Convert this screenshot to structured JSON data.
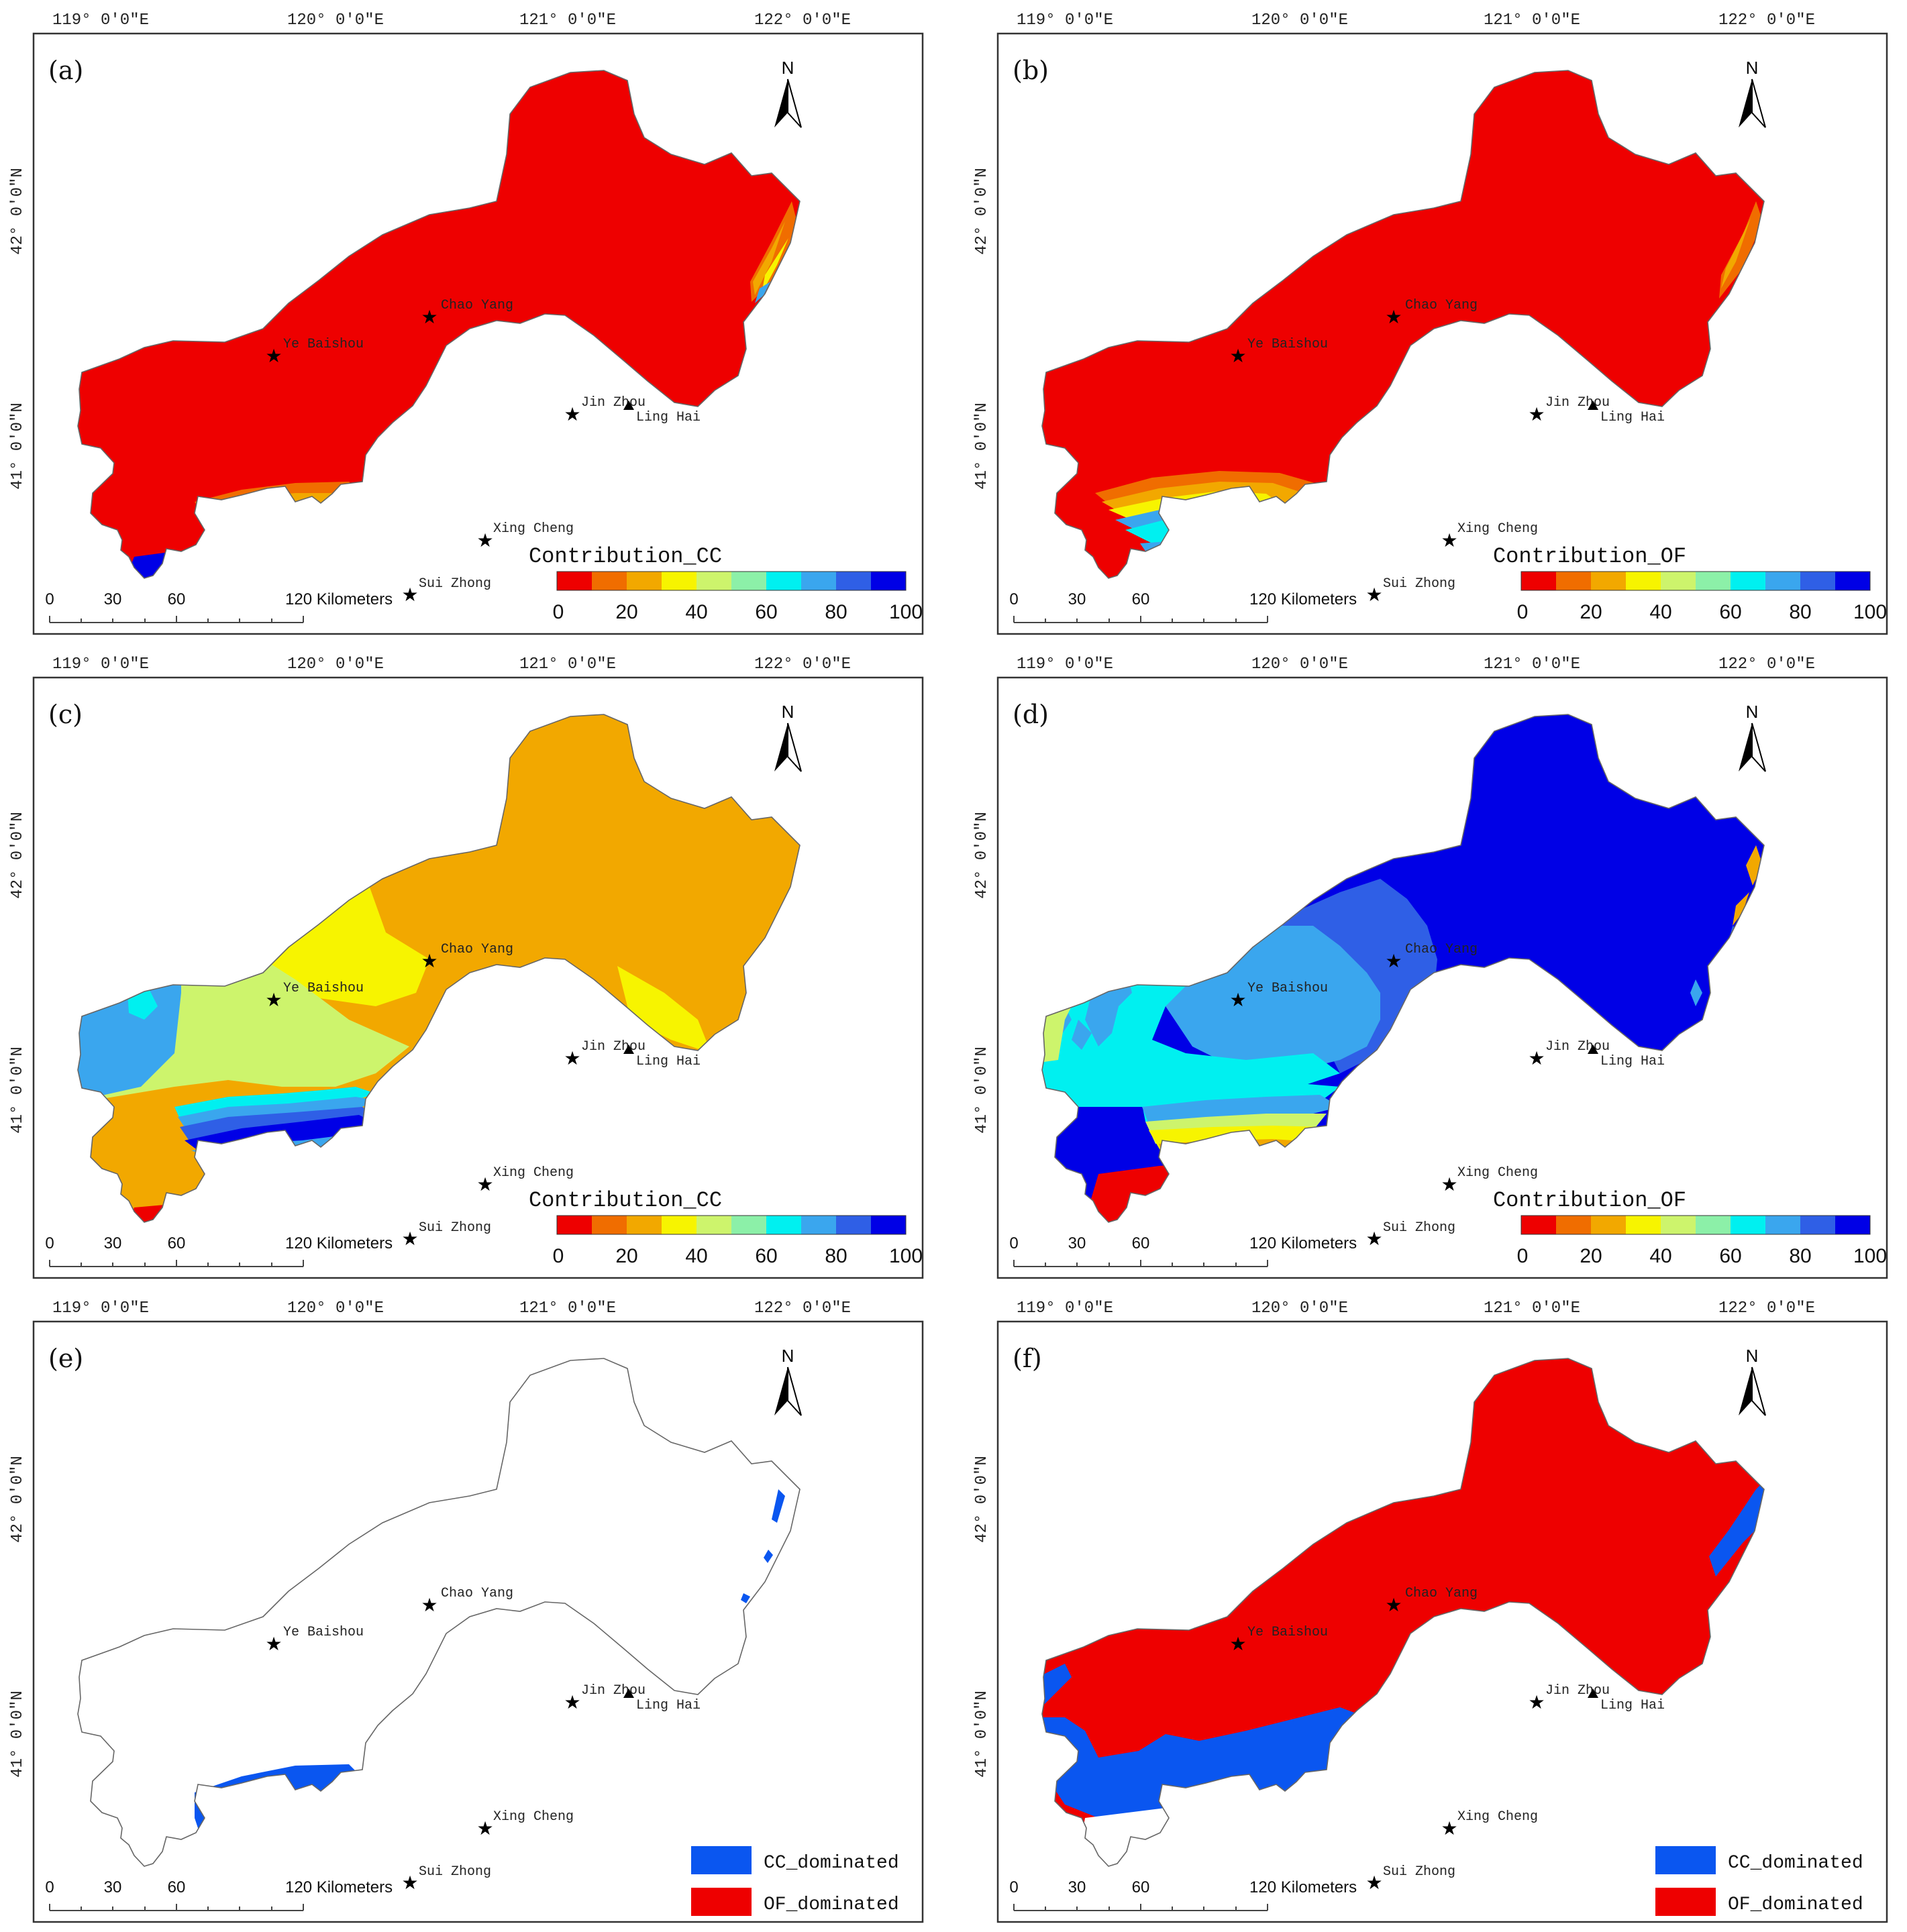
{
  "figure": {
    "lon_labels": [
      "119° 0′0″E",
      "120° 0′0″E",
      "121° 0′0″E",
      "122° 0′0″E"
    ],
    "lat_labels": [
      "42° 0′0″N",
      "41° 0′0″N"
    ],
    "north_label": "N",
    "scale": {
      "ticks": [
        "0",
        "30",
        "60"
      ],
      "end_label": "120 Kilometers"
    },
    "places": {
      "chao_yang": "Chao Yang",
      "ye_baishou": "Ye Baishou",
      "jin_zhou": "Jin Zhou",
      "ling_hai": "Ling Hai",
      "xing_cheng": "Xing Cheng",
      "sui_zhong": "Sui Zhong"
    },
    "colorbar": {
      "ticks": [
        "0",
        "20",
        "40",
        "60",
        "80",
        "100"
      ],
      "colors": [
        "#ee0000",
        "#f06d00",
        "#f2a800",
        "#f7f400",
        "#cdf46c",
        "#8cf0a8",
        "#00f0f0",
        "#3aa6ee",
        "#2f5fe6",
        "#0000e6"
      ]
    },
    "category_legend": [
      {
        "label": "CC_dominated",
        "color": "#0a56f0"
      },
      {
        "label": "OF_dominated",
        "color": "#ee0000"
      }
    ]
  },
  "panels": [
    {
      "id": "a",
      "label": "(a)",
      "type": "continuous",
      "legend_title": "Contribution_CC"
    },
    {
      "id": "b",
      "label": "(b)",
      "type": "continuous",
      "legend_title": "Contribution_OF"
    },
    {
      "id": "c",
      "label": "(c)",
      "type": "continuous",
      "legend_title": "Contribution_CC"
    },
    {
      "id": "d",
      "label": "(d)",
      "type": "continuous",
      "legend_title": "Contribution_OF"
    },
    {
      "id": "e",
      "label": "(e)",
      "type": "categorical"
    },
    {
      "id": "f",
      "label": "(f)",
      "type": "categorical"
    }
  ]
}
